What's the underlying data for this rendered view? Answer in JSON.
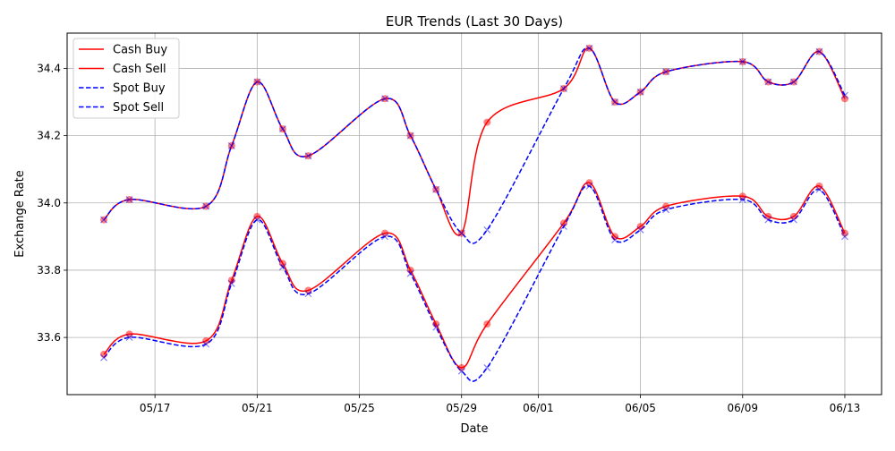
{
  "chart_data": {
    "type": "line",
    "title": "EUR Trends (Last 30 Days)",
    "xlabel": "Date",
    "ylabel": "Exchange Rate",
    "grid": true,
    "legend_position": "top-left",
    "x_ticks": [
      "05/17",
      "05/21",
      "05/25",
      "05/29",
      "06/01",
      "06/05",
      "06/09",
      "06/13"
    ],
    "x_tick_values": [
      "2024-05-17",
      "2024-05-21",
      "2024-05-25",
      "2024-05-29",
      "2024-06-01",
      "2024-06-05",
      "2024-06-09",
      "2024-06-13"
    ],
    "y_ticks": [
      "33.6",
      "33.8",
      "34.0",
      "34.2",
      "34.4"
    ],
    "y_tick_values": [
      33.6,
      33.8,
      34.0,
      34.2,
      34.4
    ],
    "xlim": [
      "2024-05-13T13:30",
      "2024-06-14T10:30"
    ],
    "ylim": [
      33.43,
      34.505
    ],
    "x": [
      "2024-05-15",
      "2024-05-16",
      "2024-05-19",
      "2024-05-20",
      "2024-05-21",
      "2024-05-22",
      "2024-05-23",
      "2024-05-26",
      "2024-05-27",
      "2024-05-28",
      "2024-05-29",
      "2024-05-30",
      "2024-06-02",
      "2024-06-03",
      "2024-06-04",
      "2024-06-05",
      "2024-06-06",
      "2024-06-09",
      "2024-06-10",
      "2024-06-11",
      "2024-06-12",
      "2024-06-13"
    ],
    "series": [
      {
        "name": "Cash Buy",
        "color": "#ff0000",
        "dash": "solid",
        "marker": "circle",
        "values": [
          33.55,
          33.61,
          33.59,
          33.77,
          33.96,
          33.82,
          33.74,
          33.91,
          33.8,
          33.64,
          33.51,
          33.64,
          33.94,
          34.06,
          33.9,
          33.93,
          33.99,
          34.02,
          33.96,
          33.96,
          34.05,
          33.91
        ]
      },
      {
        "name": "Cash Sell",
        "color": "#ff0000",
        "dash": "solid",
        "marker": "circle",
        "values": [
          33.95,
          34.01,
          33.99,
          34.17,
          34.36,
          34.22,
          34.14,
          34.31,
          34.2,
          34.04,
          33.91,
          34.24,
          34.34,
          34.46,
          34.3,
          34.33,
          34.39,
          34.42,
          34.36,
          34.36,
          34.45,
          34.31
        ]
      },
      {
        "name": "Spot Buy",
        "color": "#0000ff",
        "dash": "dashed",
        "marker": "x",
        "values": [
          33.54,
          33.6,
          33.58,
          33.76,
          33.95,
          33.81,
          33.73,
          33.9,
          33.79,
          33.63,
          33.5,
          33.51,
          33.93,
          34.05,
          33.89,
          33.92,
          33.98,
          34.01,
          33.95,
          33.95,
          34.04,
          33.9
        ]
      },
      {
        "name": "Spot Sell",
        "color": "#0000ff",
        "dash": "dashed",
        "marker": "x",
        "values": [
          33.95,
          34.01,
          33.99,
          34.17,
          34.36,
          34.22,
          34.14,
          34.31,
          34.2,
          34.04,
          33.91,
          33.92,
          34.34,
          34.46,
          34.3,
          34.33,
          34.39,
          34.42,
          34.36,
          34.36,
          34.45,
          34.32
        ]
      }
    ]
  }
}
